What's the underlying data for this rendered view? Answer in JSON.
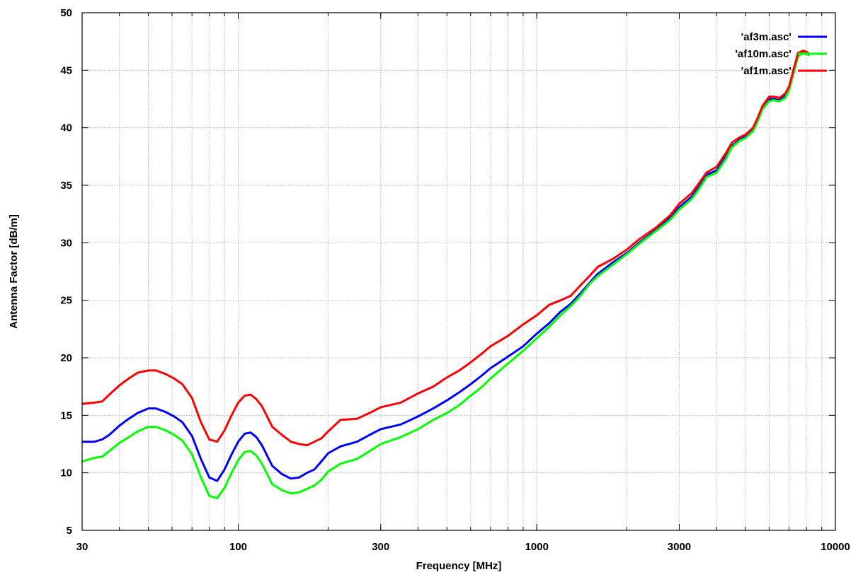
{
  "chart_data": {
    "type": "line",
    "xlabel": "Frequency [MHz]",
    "ylabel": "Antenna Factor [dB/m]",
    "x_scale": "log",
    "xlim": [
      30,
      10000
    ],
    "ylim": [
      5,
      50
    ],
    "x_ticks": [
      30,
      100,
      300,
      1000,
      3000,
      10000
    ],
    "x_tick_labels": [
      "30",
      "100",
      "300",
      "1000",
      "3000",
      "10000"
    ],
    "y_ticks": [
      5,
      10,
      15,
      20,
      25,
      30,
      35,
      40,
      45,
      50
    ],
    "y_tick_labels": [
      "5",
      "10",
      "15",
      "20",
      "25",
      "30",
      "35",
      "40",
      "45",
      "50"
    ],
    "grid": true,
    "legend_position": "top-right",
    "series": [
      {
        "name": "'af3m.asc'",
        "color": "#0000ff",
        "x": [
          30,
          33,
          35,
          37,
          40,
          43,
          46,
          50,
          53,
          57,
          61,
          65,
          70,
          75,
          80,
          85,
          90,
          95,
          100,
          105,
          110,
          115,
          120,
          130,
          140,
          150,
          160,
          170,
          180,
          190,
          200,
          220,
          250,
          280,
          300,
          350,
          400,
          450,
          500,
          550,
          600,
          650,
          700,
          800,
          900,
          1000,
          1100,
          1200,
          1300,
          1400,
          1500,
          1600,
          1800,
          2000,
          2200,
          2500,
          2800,
          3000,
          3300,
          3500,
          3700,
          4000,
          4300,
          4500,
          4800,
          5000,
          5300,
          5500,
          5700,
          6000,
          6200,
          6500,
          6800,
          7000,
          7300,
          7500,
          7800,
          8000,
          8200
        ],
        "y": [
          12.7,
          12.7,
          12.9,
          13.3,
          14.1,
          14.7,
          15.2,
          15.6,
          15.6,
          15.3,
          14.9,
          14.4,
          13.2,
          11.2,
          9.6,
          9.3,
          10.3,
          11.6,
          12.7,
          13.4,
          13.5,
          13.1,
          12.4,
          10.6,
          9.9,
          9.5,
          9.6,
          10.0,
          10.3,
          11.0,
          11.7,
          12.3,
          12.7,
          13.4,
          13.8,
          14.2,
          14.9,
          15.6,
          16.3,
          17.0,
          17.7,
          18.4,
          19.1,
          20.1,
          21.0,
          22.1,
          23.0,
          24.0,
          24.7,
          25.6,
          26.5,
          27.3,
          28.3,
          29.1,
          30.0,
          31.1,
          32.2,
          33.1,
          34.0,
          34.9,
          35.9,
          36.3,
          37.5,
          38.4,
          39.0,
          39.2,
          39.8,
          40.7,
          41.8,
          42.5,
          42.5,
          42.4,
          42.8,
          43.5,
          45.3,
          46.4,
          46.6,
          46.5,
          46.3
        ]
      },
      {
        "name": "'af10m.asc'",
        "color": "#00ff00",
        "x": [
          30,
          33,
          35,
          37,
          40,
          43,
          46,
          50,
          53,
          57,
          61,
          65,
          70,
          75,
          80,
          85,
          90,
          95,
          100,
          105,
          110,
          115,
          120,
          130,
          140,
          150,
          160,
          170,
          180,
          190,
          200,
          220,
          250,
          280,
          300,
          350,
          400,
          450,
          500,
          550,
          600,
          650,
          700,
          800,
          900,
          1000,
          1100,
          1200,
          1300,
          1400,
          1500,
          1600,
          1800,
          2000,
          2200,
          2500,
          2800,
          3000,
          3300,
          3500,
          3700,
          4000,
          4300,
          4500,
          4800,
          5000,
          5300,
          5500,
          5700,
          6000,
          6200,
          6500,
          6800,
          7000,
          7300,
          7500,
          7800,
          8000,
          8200
        ],
        "y": [
          11.0,
          11.3,
          11.4,
          11.9,
          12.6,
          13.1,
          13.6,
          14.0,
          14.0,
          13.7,
          13.3,
          12.8,
          11.6,
          9.6,
          8.0,
          7.8,
          8.7,
          10.0,
          11.1,
          11.8,
          11.9,
          11.5,
          10.8,
          9.0,
          8.5,
          8.2,
          8.3,
          8.6,
          8.9,
          9.4,
          10.1,
          10.8,
          11.2,
          12.0,
          12.5,
          13.1,
          13.8,
          14.6,
          15.2,
          15.9,
          16.7,
          17.4,
          18.2,
          19.5,
          20.6,
          21.7,
          22.7,
          23.7,
          24.5,
          25.4,
          26.4,
          27.1,
          28.1,
          29.0,
          29.9,
          31.0,
          32.0,
          32.9,
          33.8,
          34.7,
          35.7,
          36.1,
          37.3,
          38.3,
          38.9,
          39.1,
          39.7,
          40.6,
          41.6,
          42.3,
          42.4,
          42.3,
          42.6,
          43.3,
          45.1,
          46.2,
          46.5,
          46.4,
          46.3
        ]
      },
      {
        "name": "'af1m.asc'",
        "color": "#ff0000",
        "x": [
          30,
          33,
          35,
          37,
          40,
          43,
          46,
          50,
          53,
          57,
          61,
          65,
          70,
          75,
          80,
          85,
          90,
          95,
          100,
          105,
          110,
          115,
          120,
          130,
          140,
          150,
          160,
          170,
          180,
          190,
          200,
          220,
          250,
          280,
          300,
          350,
          400,
          450,
          500,
          550,
          600,
          650,
          700,
          800,
          900,
          1000,
          1100,
          1200,
          1300,
          1400,
          1500,
          1600,
          1800,
          2000,
          2200,
          2500,
          2800,
          3000,
          3300,
          3500,
          3700,
          4000,
          4300,
          4500,
          4800,
          5000,
          5300,
          5500,
          5700,
          6000,
          6200,
          6500,
          6800,
          7000,
          7300,
          7500,
          7800,
          8000,
          8200
        ],
        "y": [
          16.0,
          16.1,
          16.2,
          16.8,
          17.6,
          18.2,
          18.7,
          18.9,
          18.9,
          18.6,
          18.2,
          17.7,
          16.5,
          14.4,
          12.9,
          12.7,
          13.7,
          15.0,
          16.1,
          16.7,
          16.8,
          16.4,
          15.8,
          14.0,
          13.3,
          12.7,
          12.5,
          12.4,
          12.7,
          13.0,
          13.6,
          14.6,
          14.7,
          15.3,
          15.7,
          16.1,
          16.9,
          17.5,
          18.3,
          18.9,
          19.6,
          20.3,
          21.0,
          21.9,
          22.9,
          23.7,
          24.6,
          25.0,
          25.4,
          26.3,
          27.1,
          27.9,
          28.6,
          29.4,
          30.3,
          31.3,
          32.4,
          33.4,
          34.3,
          35.2,
          36.1,
          36.6,
          37.8,
          38.7,
          39.2,
          39.4,
          40.0,
          40.9,
          41.9,
          42.7,
          42.7,
          42.6,
          43.0,
          43.6,
          45.4,
          46.5,
          46.7,
          46.6,
          46.4
        ]
      }
    ]
  }
}
